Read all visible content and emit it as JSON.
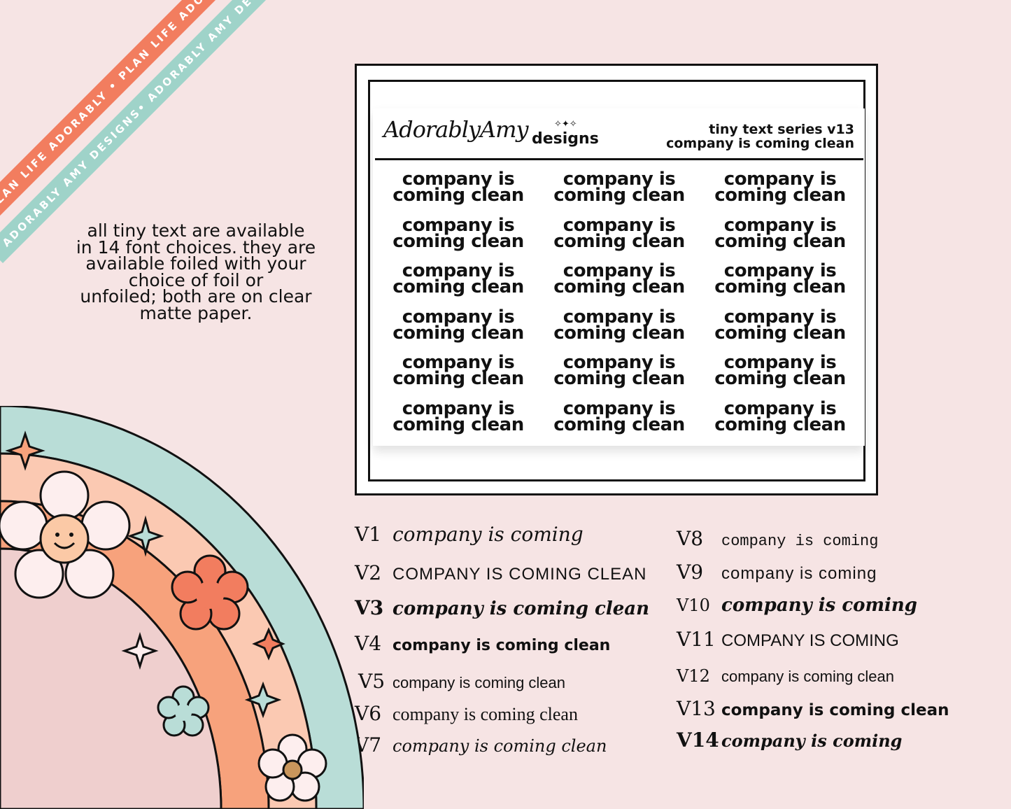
{
  "ribbons": {
    "coral": "PLAN LIFE ADORABLY • PLAN LIFE ADORABLY • PLAN LIFE ADORABLY •",
    "teal": "ADORABLY AMY DESIGNS• ADORABLY AMY DESIGNS• ADORABLY AMY DESIGNS•"
  },
  "info": {
    "lines": [
      "all tiny text are available",
      "in 14 font choices. they are",
      "available foiled with your",
      "choice of foil or",
      "unfoiled; both are on clear",
      "matte paper."
    ]
  },
  "sheet": {
    "brand_script": "AdorablyAmy",
    "brand_word": "designs",
    "series_line1": "tiny text series v13",
    "series_line2": "company is coming clean",
    "sticker_line1": "company is",
    "sticker_line2": "coming clean"
  },
  "variants": [
    {
      "label": "V1",
      "text": "company is coming"
    },
    {
      "label": "V2",
      "text": "COMPANY IS COMING CLEAN"
    },
    {
      "label": "V3",
      "text": "company is coming clean"
    },
    {
      "label": "V4",
      "text": "company is coming clean"
    },
    {
      "label": "V5",
      "text": "company is coming clean"
    },
    {
      "label": "V6",
      "text": "company is coming clean"
    },
    {
      "label": "V7",
      "text": "company is coming clean"
    },
    {
      "label": "V8",
      "text": "company is coming"
    },
    {
      "label": "V9",
      "text": "company is coming"
    },
    {
      "label": "V10",
      "text": "company is coming"
    },
    {
      "label": "V11",
      "text": "COMPANY IS COMING"
    },
    {
      "label": "V12",
      "text": "company is coming clean"
    },
    {
      "label": "V13",
      "text": "company is coming clean"
    },
    {
      "label": "V14",
      "text": "company is coming"
    }
  ],
  "colors": {
    "background": "#f6e4e4",
    "coral": "#f27d5f",
    "teal": "#9fd3c9",
    "peach": "#f7a27c",
    "light_peach": "#fbc9b2",
    "pink": "#efcfce"
  }
}
